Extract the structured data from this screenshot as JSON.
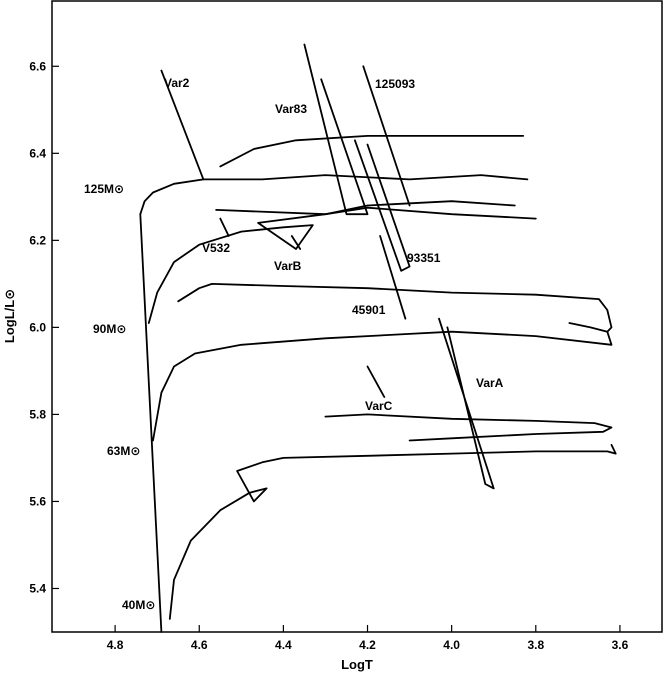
{
  "chart_data": {
    "type": "line",
    "title": "",
    "xlabel": "LogT",
    "ylabel": "LogL/L⊙",
    "xlim": [
      4.95,
      3.5
    ],
    "ylim": [
      5.3,
      6.75
    ],
    "grid": false,
    "x_ticks": [
      4.8,
      4.6,
      4.4,
      4.2,
      4.0,
      3.8,
      3.6
    ],
    "x_tick_labels": [
      "4.8",
      "4.6",
      "4.4",
      "4.2",
      "4.0",
      "3.8",
      "3.6"
    ],
    "y_ticks": [
      5.4,
      5.6,
      5.8,
      6.0,
      6.2,
      6.4,
      6.6
    ],
    "y_tick_labels": [
      "5.4",
      "5.6",
      "5.8",
      "6.0",
      "6.2",
      "6.4",
      "6.6"
    ],
    "series": [
      {
        "points": [
          [
            4.69,
            5.3
          ],
          [
            4.74,
            6.26
          ]
        ]
      },
      {
        "points": [
          [
            4.74,
            6.26
          ],
          [
            4.73,
            6.29
          ],
          [
            4.71,
            6.31
          ],
          [
            4.66,
            6.33
          ],
          [
            4.59,
            6.34
          ],
          [
            4.45,
            6.34
          ],
          [
            4.3,
            6.35
          ],
          [
            4.1,
            6.34
          ],
          [
            3.93,
            6.35
          ],
          [
            3.82,
            6.34
          ]
        ]
      },
      {
        "points": [
          [
            4.72,
            6.01
          ],
          [
            4.7,
            6.08
          ],
          [
            4.66,
            6.15
          ],
          [
            4.6,
            6.19
          ],
          [
            4.5,
            6.22
          ],
          [
            4.4,
            6.23
          ],
          [
            4.33,
            6.235
          ],
          [
            4.37,
            6.18
          ],
          [
            4.46,
            6.24
          ],
          [
            4.3,
            6.26
          ],
          [
            4.2,
            6.28
          ],
          [
            4.0,
            6.29
          ],
          [
            3.85,
            6.28
          ]
        ]
      },
      {
        "points": [
          [
            4.56,
            6.27
          ],
          [
            4.3,
            6.26
          ],
          [
            4.2,
            6.275
          ],
          [
            4.0,
            6.26
          ],
          [
            3.8,
            6.25
          ]
        ]
      },
      {
        "points": [
          [
            4.55,
            6.37
          ],
          [
            4.47,
            6.41
          ],
          [
            4.37,
            6.43
          ],
          [
            4.2,
            6.44
          ],
          [
            4.0,
            6.44
          ],
          [
            3.83,
            6.44
          ]
        ]
      },
      {
        "points": [
          [
            4.65,
            6.06
          ],
          [
            4.6,
            6.09
          ],
          [
            4.57,
            6.1
          ],
          [
            4.4,
            6.095
          ],
          [
            4.2,
            6.09
          ],
          [
            4.0,
            6.08
          ],
          [
            3.8,
            6.075
          ],
          [
            3.65,
            6.065
          ],
          [
            3.63,
            6.04
          ],
          [
            3.62,
            6.0
          ],
          [
            3.63,
            5.99
          ]
        ]
      },
      {
        "points": [
          [
            4.71,
            5.74
          ],
          [
            4.69,
            5.85
          ],
          [
            4.66,
            5.91
          ],
          [
            4.61,
            5.94
          ],
          [
            4.5,
            5.96
          ],
          [
            4.3,
            5.975
          ],
          [
            4.1,
            5.985
          ],
          [
            4.0,
            5.99
          ],
          [
            3.8,
            5.98
          ],
          [
            3.62,
            5.96
          ],
          [
            3.63,
            5.99
          ],
          [
            3.67,
            6.0
          ],
          [
            3.72,
            6.01
          ]
        ]
      },
      {
        "points": [
          [
            4.67,
            5.33
          ],
          [
            4.66,
            5.42
          ],
          [
            4.62,
            5.51
          ],
          [
            4.55,
            5.58
          ],
          [
            4.48,
            5.62
          ],
          [
            4.44,
            5.63
          ],
          [
            4.47,
            5.6
          ],
          [
            4.51,
            5.67
          ],
          [
            4.45,
            5.69
          ],
          [
            4.4,
            5.7
          ],
          [
            4.2,
            5.705
          ],
          [
            4.0,
            5.71
          ],
          [
            3.8,
            5.715
          ],
          [
            3.63,
            5.715
          ],
          [
            3.61,
            5.71
          ],
          [
            3.62,
            5.73
          ]
        ]
      },
      {
        "points": [
          [
            4.3,
            5.795
          ],
          [
            4.2,
            5.8
          ],
          [
            4.0,
            5.79
          ],
          [
            3.8,
            5.785
          ],
          [
            3.66,
            5.78
          ],
          [
            3.62,
            5.77
          ],
          [
            3.64,
            5.76
          ],
          [
            3.8,
            5.755
          ],
          [
            4.0,
            5.745
          ],
          [
            4.1,
            5.74
          ]
        ]
      },
      {
        "points": [
          [
            4.35,
            6.65
          ],
          [
            4.25,
            6.26
          ],
          [
            4.2,
            6.26
          ],
          [
            4.31,
            6.57
          ]
        ]
      },
      {
        "points": [
          [
            4.21,
            6.6
          ],
          [
            4.1,
            6.28
          ]
        ]
      },
      {
        "points": [
          [
            4.23,
            6.43
          ],
          [
            4.12,
            6.13
          ],
          [
            4.1,
            6.14
          ],
          [
            4.2,
            6.42
          ]
        ]
      },
      {
        "points": [
          [
            4.17,
            6.21
          ],
          [
            4.11,
            6.02
          ]
        ]
      },
      {
        "points": [
          [
            4.03,
            6.02
          ],
          [
            3.9,
            5.63
          ],
          [
            3.92,
            5.64
          ],
          [
            4.01,
            6.0
          ]
        ]
      },
      {
        "points": [
          [
            4.2,
            5.91
          ],
          [
            4.16,
            5.84
          ]
        ]
      },
      {
        "points": [
          [
            4.69,
            6.59
          ],
          [
            4.59,
            6.34
          ]
        ]
      },
      {
        "points": [
          [
            4.55,
            6.25
          ],
          [
            4.53,
            6.21
          ]
        ]
      },
      {
        "points": [
          [
            4.38,
            6.21
          ],
          [
            4.36,
            6.18
          ]
        ]
      }
    ],
    "annotations": [
      "Var2",
      "Var83",
      "125093",
      "125M⊙",
      "V532",
      "VarB",
      "93351",
      "45901",
      "90M⊙",
      "VarC",
      "VarA",
      "63M⊙",
      "40M⊙"
    ]
  }
}
